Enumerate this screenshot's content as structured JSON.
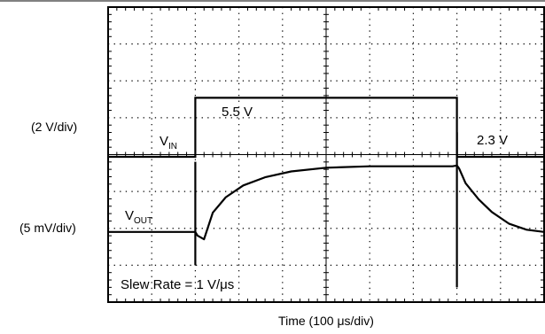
{
  "chart_data": {
    "type": "line",
    "title": "",
    "xlabel": "Time (100 μs/div)",
    "x_unit": "μs",
    "xlim": [
      0,
      1000
    ],
    "grid": true,
    "divisions": {
      "horizontal": 10,
      "vertical": 8
    },
    "channel_scales": [
      "(2 V/div)",
      "(5 mV/div)"
    ],
    "annotations": [
      "5.5 V",
      "2.3 V",
      "Slew Rate = 1 V/μs"
    ],
    "series": [
      {
        "name": "V_IN",
        "label_main": "V",
        "label_sub": "IN",
        "scale": "2 V/div",
        "points": [
          [
            0,
            2.3
          ],
          [
            200,
            2.3
          ],
          [
            200,
            5.5
          ],
          [
            800,
            5.5
          ],
          [
            800,
            2.3
          ],
          [
            1000,
            2.3
          ]
        ]
      },
      {
        "name": "V_OUT",
        "label_main": "V",
        "label_sub": "OUT",
        "scale": "5 mV/div",
        "x": [
          0,
          200,
          205,
          220,
          240,
          270,
          310,
          360,
          420,
          500,
          600,
          700,
          790,
          800,
          805,
          820,
          850,
          880,
          920,
          960,
          1000
        ],
        "y": [
          0.0,
          0.0,
          -0.5,
          -1.0,
          2.6,
          4.7,
          6.3,
          7.4,
          8.2,
          8.7,
          8.9,
          8.9,
          8.9,
          9.0,
          8.6,
          6.6,
          4.4,
          2.7,
          1.1,
          0.3,
          0.0
        ],
        "spikes": [
          {
            "x": 200,
            "from": 9.5,
            "to": -4.5
          },
          {
            "x": 800,
            "from": 13.5,
            "to": -7.5
          }
        ]
      }
    ]
  }
}
